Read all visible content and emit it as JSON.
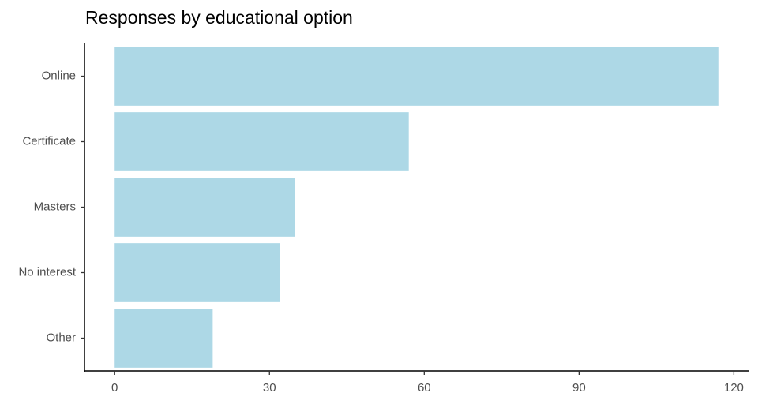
{
  "chart_data": {
    "type": "bar",
    "orientation": "horizontal",
    "title": "Responses by educational option",
    "categories": [
      "Online",
      "Certificate",
      "Masters",
      "No interest",
      "Other"
    ],
    "values": [
      117,
      57,
      35,
      32,
      19
    ],
    "color": "#add8e6",
    "xlim": [
      -5.85,
      122.85
    ],
    "xticks": [
      0,
      30,
      60,
      90,
      120
    ],
    "grid": false
  }
}
